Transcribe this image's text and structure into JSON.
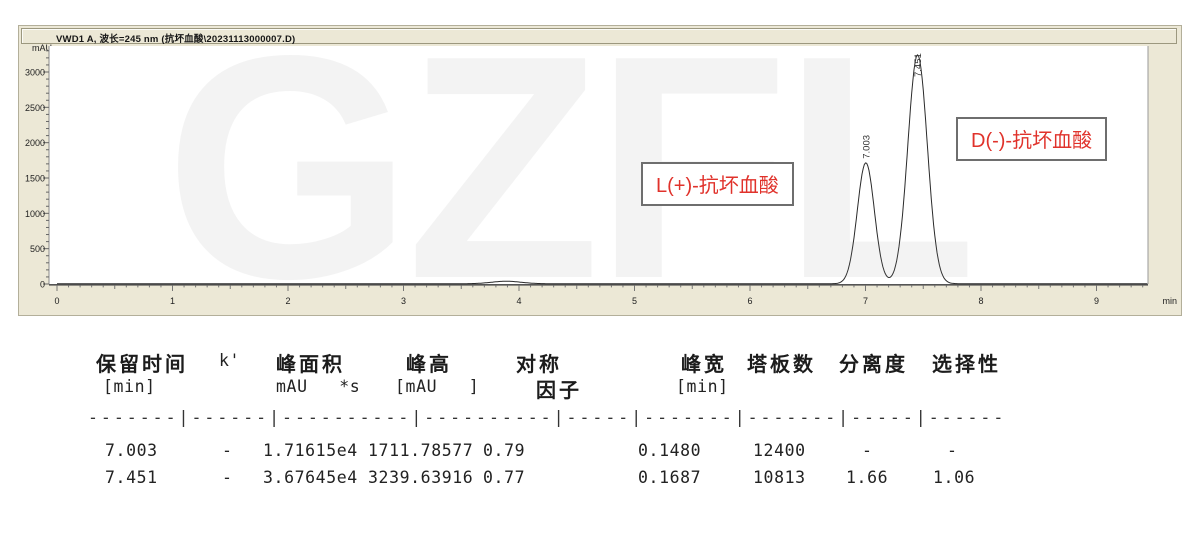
{
  "watermark_text": "GZFL",
  "chart_data": {
    "type": "line",
    "title": "VWD1 A, 波长=245 nm (抗坏血酸\\20231113000007.D)",
    "xlabel": "min",
    "ylabel": "mAU",
    "xlim": [
      0,
      9.44
    ],
    "ylim": [
      0,
      3350
    ],
    "xticks": [
      0,
      1,
      2,
      3,
      4,
      5,
      6,
      7,
      8,
      9
    ],
    "yticks": [
      0,
      500,
      1000,
      1500,
      2000,
      2500,
      3000
    ],
    "grid": false,
    "baseline_mau": 4,
    "peaks": [
      {
        "rt_min": 3.89,
        "height_mau": 35,
        "width_min": 0.25,
        "label": ""
      },
      {
        "rt_min": 7.003,
        "height_mau": 1711.78577,
        "width_min": 0.148,
        "label": "7.003"
      },
      {
        "rt_min": 7.451,
        "height_mau": 3239.63916,
        "width_min": 0.1687,
        "label": "7.451"
      }
    ],
    "annotations": [
      {
        "text": "L(+)-抗坏血酸",
        "target_peak_rt": 7.003
      },
      {
        "text": "D(-)-抗坏血酸",
        "target_peak_rt": 7.451
      }
    ]
  },
  "table": {
    "header_row1": {
      "retention": "保留时间",
      "k": "k'",
      "area": "峰面积",
      "height": "峰高",
      "symmetry": "对称",
      "width": "峰宽",
      "plates": "塔板数",
      "resolution": "分离度",
      "selectivity": "选择性"
    },
    "header_row2": {
      "retention_unit": "[min]",
      "area_unit": "mAU   *s",
      "height_unit": "[mAU   ]",
      "symmetry2": "因子",
      "width_unit": "[min]"
    },
    "separator": "-------|------|----------|----------|-----|-------|-------|-----|------",
    "rows": [
      [
        "7.003",
        "-",
        "1.71615e4",
        "1711.78577",
        "0.79",
        "0.1480",
        "12400",
        "-",
        "-"
      ],
      [
        "7.451",
        "-",
        "3.67645e4",
        "3239.63916",
        "0.77",
        "0.1687",
        "10813",
        "1.66",
        "1.06"
      ]
    ]
  },
  "colors": {
    "widget_bg": "#ece8d6",
    "plot_bg": "#ffffff",
    "trace": "#2a2a2a",
    "annotation_red": "#e0322b",
    "axis": "#555555"
  }
}
